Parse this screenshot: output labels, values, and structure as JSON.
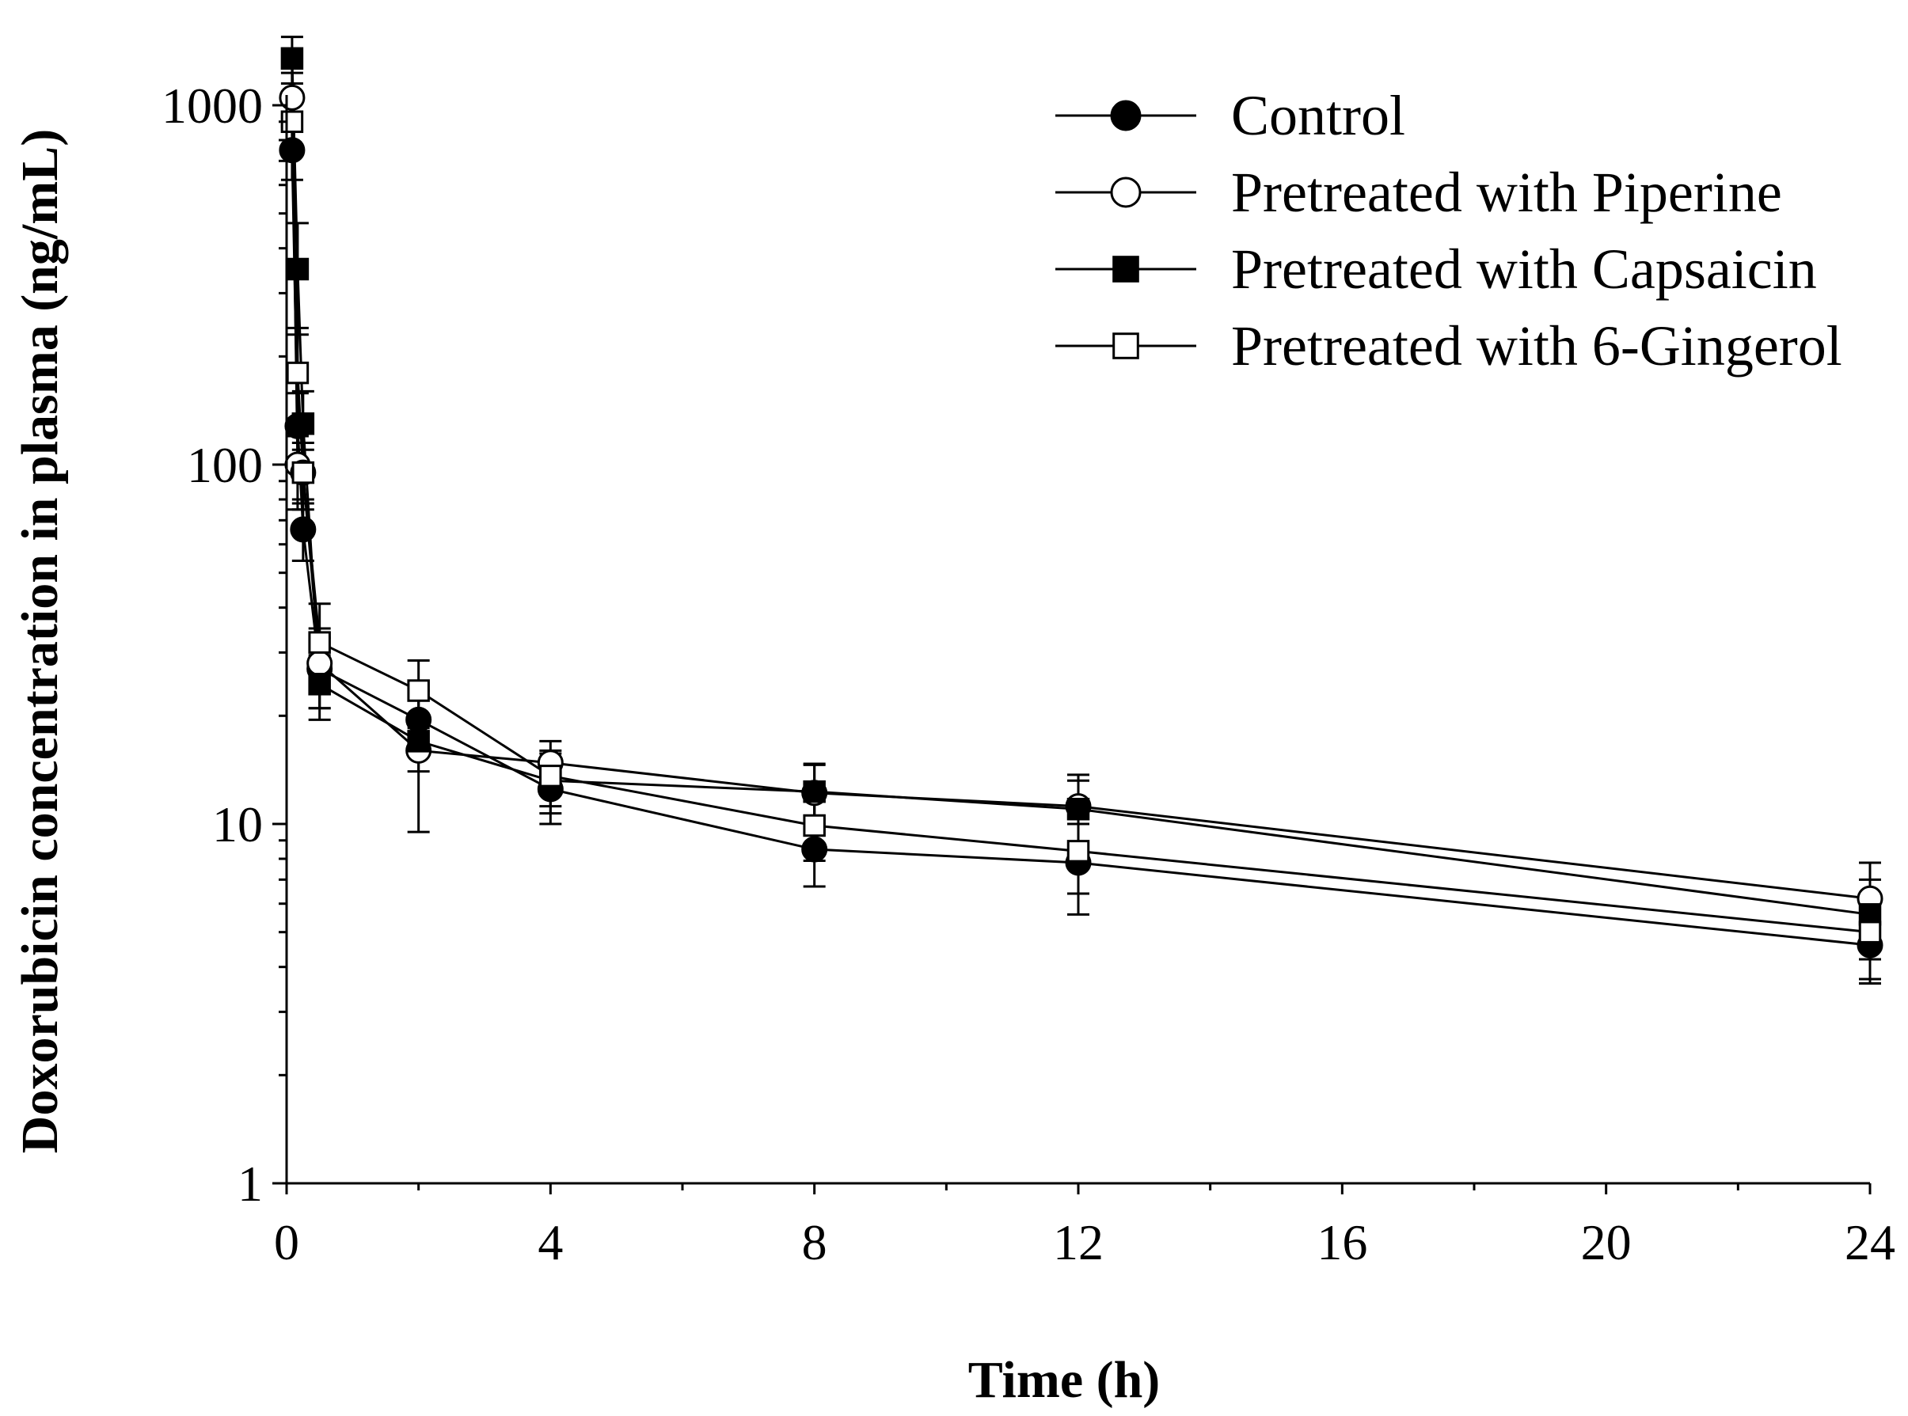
{
  "chart_data": {
    "type": "line",
    "title": "",
    "xlabel": "Time (h)",
    "ylabel": "Doxorubicin concentration in plasma (ng/mL)",
    "xlim": [
      0,
      24
    ],
    "ylim": [
      1,
      2000
    ],
    "yscale": "log",
    "grid": false,
    "legend_position": "top-right",
    "x_ticks": [
      0,
      4,
      8,
      12,
      16,
      20,
      24
    ],
    "x_tick_labels": [
      "0",
      "4",
      "8",
      "12",
      "16",
      "20",
      "24"
    ],
    "y_major_ticks": [
      1,
      10,
      100,
      1000
    ],
    "y_tick_labels": [
      "1",
      "10",
      "100",
      "1000"
    ],
    "x": [
      0.083,
      0.167,
      0.25,
      0.5,
      2,
      4,
      8,
      12,
      24
    ],
    "series": [
      {
        "name": "Control",
        "marker": "filled-circle",
        "values": [
          750,
          128,
          66,
          27,
          19.5,
          12.5,
          8.5,
          7.8,
          4.6
        ],
        "errors": [
          130,
          30,
          12,
          6,
          4,
          2.5,
          1.8,
          2.2,
          1.0
        ]
      },
      {
        "name": "Pretreated with Piperine",
        "marker": "open-circle",
        "values": [
          1050,
          100,
          95,
          28,
          16,
          14.8,
          12.2,
          11.2,
          6.2
        ],
        "errors": [
          180,
          25,
          15,
          7,
          6.5,
          2.2,
          2.5,
          2.5,
          1.6
        ]
      },
      {
        "name": "Pretreated with Capsaicin",
        "marker": "filled-square",
        "values": [
          1350,
          350,
          130,
          24.5,
          17,
          13.2,
          12.3,
          11,
          5.6
        ],
        "errors": [
          200,
          120,
          30,
          5,
          3,
          2.5,
          2.3,
          2.2,
          1.4
        ]
      },
      {
        "name": "Pretreated with 6-Gingerol",
        "marker": "open-square",
        "values": [
          900,
          180,
          95,
          32,
          23.5,
          13.6,
          9.9,
          8.4,
          5.0
        ],
        "errors": [
          150,
          60,
          20,
          9,
          5,
          2.4,
          2.0,
          2.0,
          1.3
        ]
      }
    ]
  }
}
